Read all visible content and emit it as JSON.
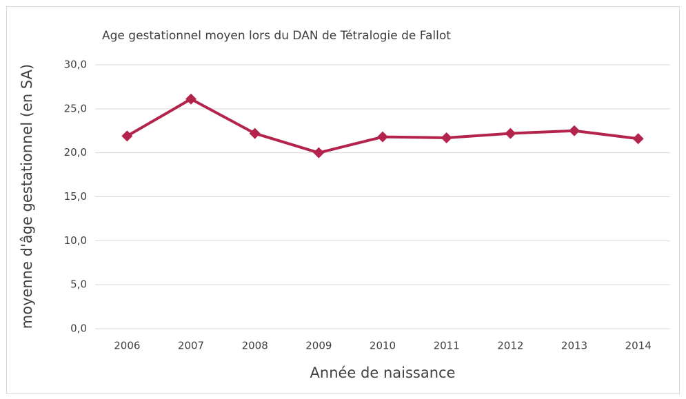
{
  "chart_data": {
    "type": "line",
    "title": "Age gestationnel moyen lors du DAN de Tétralogie de Fallot",
    "x_label": "Année de naissance",
    "y_label": "moyenne d'âge gestationnel (en SA)",
    "categories": [
      "2006",
      "2007",
      "2008",
      "2009",
      "2010",
      "2011",
      "2012",
      "2013",
      "2014"
    ],
    "values": [
      21.9,
      26.1,
      22.2,
      20.0,
      21.8,
      21.7,
      22.2,
      22.5,
      21.6
    ],
    "color": "#b3234b",
    "ylim": [
      0,
      30
    ],
    "yticks": [
      {
        "value": 0,
        "label": "0,0"
      },
      {
        "value": 5,
        "label": "5,0"
      },
      {
        "value": 10,
        "label": "10,0"
      },
      {
        "value": 15,
        "label": "15,0"
      },
      {
        "value": 20,
        "label": "20,0"
      },
      {
        "value": 25,
        "label": "25,0"
      },
      {
        "value": 30,
        "label": "30,0"
      }
    ],
    "grid": true
  }
}
